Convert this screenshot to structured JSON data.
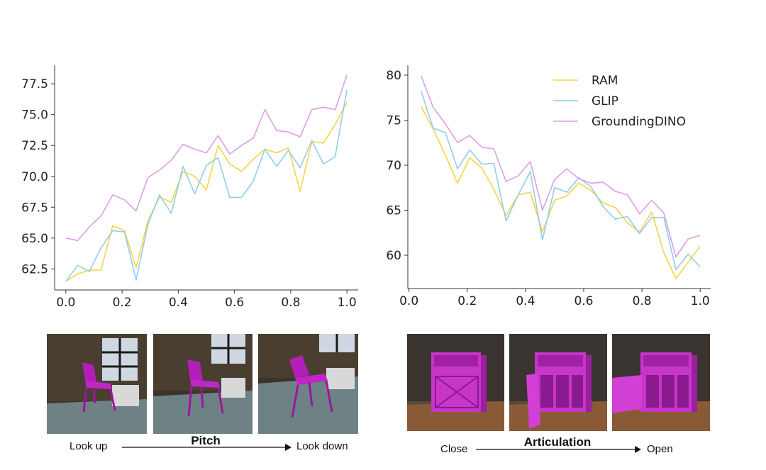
{
  "colors": {
    "RAM": "#f5d547",
    "GLIP": "#92cdeb",
    "GroundingDINO": "#dd9fe6"
  },
  "chart_data": [
    {
      "type": "line",
      "x": [
        0.0,
        0.0417,
        0.0833,
        0.125,
        0.1667,
        0.2083,
        0.25,
        0.2917,
        0.3333,
        0.375,
        0.4167,
        0.4583,
        0.5,
        0.5417,
        0.5833,
        0.625,
        0.6667,
        0.7083,
        0.75,
        0.7917,
        0.8333,
        0.875,
        0.9167,
        0.9583,
        1.0
      ],
      "series": [
        {
          "name": "RAM",
          "values": [
            61.5,
            62.1,
            62.4,
            62.4,
            66.0,
            65.6,
            62.6,
            66.4,
            68.3,
            67.9,
            70.4,
            70.0,
            68.9,
            72.5,
            71.0,
            70.4,
            71.4,
            72.2,
            71.9,
            72.3,
            68.8,
            72.8,
            72.7,
            74.2,
            76.0
          ]
        },
        {
          "name": "GLIP",
          "values": [
            61.5,
            62.8,
            62.3,
            64.2,
            65.6,
            65.5,
            61.6,
            66.1,
            68.5,
            67.0,
            70.8,
            68.6,
            70.9,
            71.5,
            68.3,
            68.3,
            69.6,
            72.2,
            70.8,
            72.1,
            70.7,
            72.9,
            71.0,
            71.6,
            77.0
          ]
        },
        {
          "name": "GroundingDINO",
          "values": [
            65.0,
            64.8,
            65.9,
            66.8,
            68.5,
            68.1,
            67.2,
            69.9,
            70.5,
            71.3,
            72.6,
            72.2,
            71.9,
            73.3,
            71.8,
            72.5,
            73.1,
            75.4,
            73.7,
            73.6,
            73.2,
            75.4,
            75.6,
            75.4,
            78.2
          ]
        }
      ],
      "x_ticks": [
        "0.0",
        "0.2",
        "0.4",
        "0.6",
        "0.8",
        "1.0"
      ],
      "y_ticks": [
        "62.5",
        "65.0",
        "67.5",
        "70.0",
        "72.5",
        "75.0",
        "77.5"
      ],
      "xlim": [
        -0.04,
        1.04
      ],
      "ylim": [
        60.8,
        79.0
      ]
    },
    {
      "type": "line",
      "x": [
        0.0417,
        0.0833,
        0.125,
        0.1667,
        0.2083,
        0.25,
        0.2917,
        0.3333,
        0.375,
        0.4167,
        0.4583,
        0.5,
        0.5417,
        0.5833,
        0.625,
        0.6667,
        0.7083,
        0.75,
        0.7917,
        0.8333,
        0.875,
        0.9167,
        0.9583,
        1.0
      ],
      "series": [
        {
          "name": "RAM",
          "values": [
            76.5,
            74.0,
            71.1,
            68.0,
            70.8,
            69.7,
            67.3,
            64.4,
            66.7,
            67.0,
            62.6,
            66.1,
            66.6,
            68.0,
            67.2,
            65.8,
            65.3,
            63.6,
            62.6,
            64.8,
            60.3,
            57.4,
            59.2,
            61.0
          ]
        },
        {
          "name": "GLIP",
          "values": [
            78.2,
            74.1,
            73.6,
            69.6,
            71.7,
            70.1,
            70.2,
            63.8,
            66.7,
            69.3,
            61.7,
            67.5,
            67.0,
            68.6,
            67.6,
            65.4,
            64.0,
            64.3,
            62.4,
            64.2,
            64.2,
            58.4,
            60.1,
            58.7
          ]
        },
        {
          "name": "GroundingDINO",
          "values": [
            79.9,
            76.4,
            74.6,
            72.5,
            73.3,
            72.0,
            71.8,
            68.2,
            68.8,
            70.4,
            65.0,
            68.4,
            69.6,
            68.5,
            68.0,
            68.1,
            67.1,
            66.7,
            64.6,
            66.1,
            64.7,
            59.8,
            61.8,
            62.2
          ]
        }
      ],
      "x_ticks": [
        "0.0",
        "0.2",
        "0.4",
        "0.6",
        "0.8",
        "1.0"
      ],
      "y_ticks": [
        "60",
        "65",
        "70",
        "75",
        "80"
      ],
      "xlim": [
        -0.004,
        1.036
      ],
      "ylim": [
        56.3,
        81.1
      ],
      "legend": {
        "placement": "top-right",
        "entries": [
          "RAM",
          "GLIP",
          "GroundingDINO"
        ]
      }
    }
  ],
  "captions": {
    "left": {
      "start": "Look up",
      "axis": "Pitch",
      "end": "Look down"
    },
    "right": {
      "start": "Close",
      "axis": "Articulation",
      "end": "Open"
    }
  }
}
